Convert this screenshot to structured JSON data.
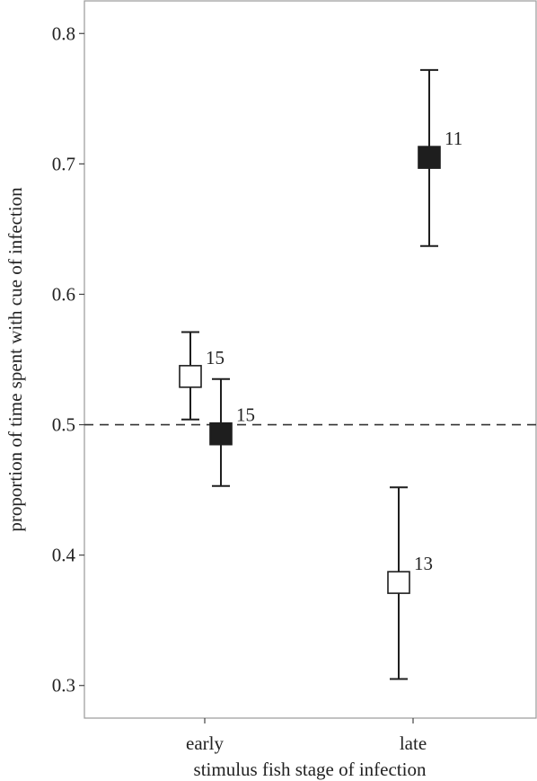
{
  "chart_data": {
    "type": "scatter",
    "xlabel": "stimulus fish stage of infection",
    "ylabel": "proportion of time spent with cue of infection",
    "categories": [
      "early",
      "late"
    ],
    "ylim": [
      0.275,
      0.825
    ],
    "yticks": [
      0.3,
      0.4,
      0.5,
      0.6,
      0.7,
      0.8
    ],
    "ytick_labels": [
      "0.3",
      "0.4",
      "0.5",
      "0.6",
      "0.7",
      "0.8"
    ],
    "reference_line": {
      "y": 0.5,
      "style": "dashed"
    },
    "grid": false,
    "legend": "none",
    "series": [
      {
        "marker": "open-square",
        "fill": "#ffffff",
        "points": [
          {
            "category": "early",
            "y": 0.537,
            "lower": 0.504,
            "upper": 0.571,
            "n": "15"
          },
          {
            "category": "late",
            "y": 0.379,
            "lower": 0.305,
            "upper": 0.452,
            "n": "13"
          }
        ]
      },
      {
        "marker": "filled-square",
        "fill": "#1e1e1e",
        "points": [
          {
            "category": "early",
            "y": 0.493,
            "lower": 0.453,
            "upper": 0.535,
            "n": "15"
          },
          {
            "category": "late",
            "y": 0.705,
            "lower": 0.637,
            "upper": 0.772,
            "n": "11"
          }
        ]
      }
    ]
  }
}
